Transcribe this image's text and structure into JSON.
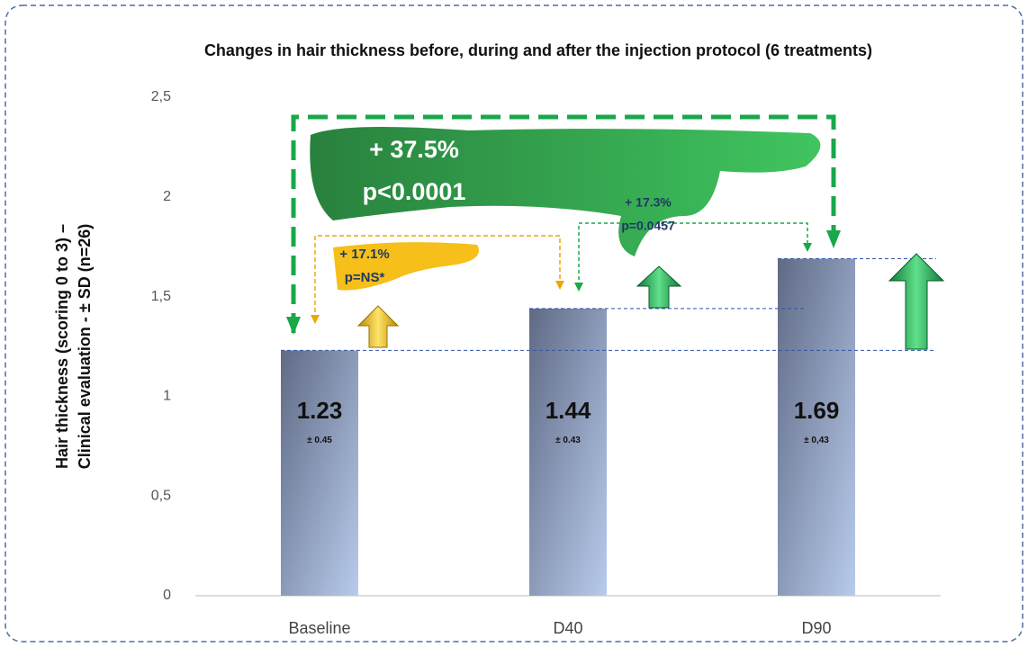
{
  "chart_data": {
    "type": "bar",
    "title": "Changes in hair thickness before, during and after the injection protocol (6 treatments)",
    "ylabel": [
      "Hair thickness (scoring 0 to 3) –",
      "Clinical evaluation - ± SD (n=26)"
    ],
    "categories": [
      "Baseline",
      "D40",
      "D90"
    ],
    "values": [
      1.23,
      1.44,
      1.69
    ],
    "sd_labels": [
      "± 0.45",
      "± 0.43",
      "± 0,43"
    ],
    "ylim": [
      0,
      2.5
    ],
    "yticks": [
      0,
      {
        "value": 0.5,
        "label": "0,5"
      },
      1,
      {
        "value": 1.5,
        "label": "1,5"
      },
      2,
      {
        "value": 2.5,
        "label": "2,5"
      }
    ],
    "annotations": [
      {
        "text": "+ 37.5%",
        "sub": "p<0.0001"
      },
      {
        "text": "+ 17.1%",
        "sub": "p=NS*"
      },
      {
        "text": "+ 17.3%",
        "sub": "p=0.0457"
      }
    ]
  }
}
